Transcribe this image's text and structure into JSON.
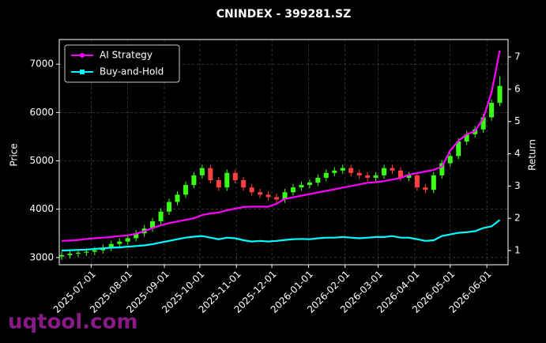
{
  "chart_data": {
    "type": "candlestick",
    "title": "CNINDEX - 399281.SZ",
    "ylabel": "Price",
    "y2label": "Return",
    "watermark": "uqtool.com",
    "legend": "upper left",
    "grid": true,
    "up_color": "#39ff14",
    "down_color": "#ff4040",
    "x": [
      "2025-06-06",
      "2025-06-13",
      "2025-06-20",
      "2025-06-27",
      "2025-07-04",
      "2025-07-11",
      "2025-07-18",
      "2025-07-25",
      "2025-08-01",
      "2025-08-08",
      "2025-08-15",
      "2025-08-22",
      "2025-08-29",
      "2025-09-05",
      "2025-09-12",
      "2025-09-19",
      "2025-09-26",
      "2025-10-03",
      "2025-10-10",
      "2025-10-17",
      "2025-10-24",
      "2025-10-31",
      "2025-11-07",
      "2025-11-14",
      "2025-11-21",
      "2025-11-28",
      "2025-12-05",
      "2025-12-12",
      "2025-12-19",
      "2025-12-26",
      "2026-01-02",
      "2026-01-09",
      "2026-01-16",
      "2026-01-23",
      "2026-01-30",
      "2026-02-06",
      "2026-02-13",
      "2026-02-20",
      "2026-02-27",
      "2026-03-06",
      "2026-03-13",
      "2026-03-20",
      "2026-03-27",
      "2026-04-03",
      "2026-04-10",
      "2026-04-17",
      "2026-04-24",
      "2026-05-01",
      "2026-05-08",
      "2026-05-15",
      "2026-05-22",
      "2026-05-29",
      "2026-06-05",
      "2026-06-12"
    ],
    "ohlc": [
      [
        3020,
        3120,
        2950,
        3050
      ],
      [
        3050,
        3150,
        2980,
        3080
      ],
      [
        3080,
        3170,
        3010,
        3100
      ],
      [
        3100,
        3190,
        3030,
        3120
      ],
      [
        3120,
        3220,
        3050,
        3150
      ],
      [
        3150,
        3270,
        3080,
        3200
      ],
      [
        3200,
        3350,
        3130,
        3280
      ],
      [
        3280,
        3400,
        3210,
        3330
      ],
      [
        3330,
        3470,
        3260,
        3400
      ],
      [
        3400,
        3570,
        3330,
        3500
      ],
      [
        3500,
        3670,
        3430,
        3600
      ],
      [
        3600,
        3820,
        3530,
        3750
      ],
      [
        3750,
        4020,
        3680,
        3950
      ],
      [
        3950,
        4220,
        3880,
        4150
      ],
      [
        4150,
        4370,
        4080,
        4300
      ],
      [
        4300,
        4570,
        4230,
        4500
      ],
      [
        4500,
        4770,
        4430,
        4700
      ],
      [
        4700,
        4920,
        4630,
        4850
      ],
      [
        4850,
        4920,
        4530,
        4600
      ],
      [
        4600,
        4670,
        4380,
        4450
      ],
      [
        4450,
        4820,
        4380,
        4750
      ],
      [
        4750,
        4820,
        4530,
        4600
      ],
      [
        4600,
        4670,
        4380,
        4450
      ],
      [
        4450,
        4520,
        4280,
        4350
      ],
      [
        4350,
        4420,
        4230,
        4300
      ],
      [
        4300,
        4370,
        4180,
        4250
      ],
      [
        4250,
        4320,
        4130,
        4200
      ],
      [
        4200,
        4420,
        4130,
        4350
      ],
      [
        4350,
        4520,
        4280,
        4450
      ],
      [
        4450,
        4570,
        4380,
        4500
      ],
      [
        4500,
        4620,
        4430,
        4550
      ],
      [
        4550,
        4720,
        4480,
        4650
      ],
      [
        4650,
        4820,
        4580,
        4750
      ],
      [
        4750,
        4870,
        4680,
        4800
      ],
      [
        4800,
        4920,
        4730,
        4850
      ],
      [
        4850,
        4920,
        4680,
        4750
      ],
      [
        4750,
        4820,
        4630,
        4700
      ],
      [
        4700,
        4770,
        4580,
        4650
      ],
      [
        4650,
        4770,
        4580,
        4700
      ],
      [
        4700,
        4920,
        4630,
        4850
      ],
      [
        4850,
        4920,
        4730,
        4800
      ],
      [
        4800,
        4870,
        4580,
        4650
      ],
      [
        4650,
        4770,
        4580,
        4700
      ],
      [
        4700,
        4770,
        4380,
        4450
      ],
      [
        4450,
        4520,
        4330,
        4400
      ],
      [
        4400,
        4770,
        4330,
        4700
      ],
      [
        4700,
        5020,
        4630,
        4950
      ],
      [
        4950,
        5170,
        4880,
        5100
      ],
      [
        5100,
        5470,
        5030,
        5400
      ],
      [
        5400,
        5620,
        5330,
        5550
      ],
      [
        5550,
        5720,
        5480,
        5650
      ],
      [
        5650,
        5970,
        5580,
        5900
      ],
      [
        5900,
        6270,
        5830,
        6200
      ],
      [
        6200,
        6750,
        6130,
        6550
      ]
    ],
    "series": [
      {
        "name": "AI Strategy",
        "color": "#ff00ff",
        "axis": "y2",
        "marker": "circle",
        "values": [
          1.3,
          1.31,
          1.33,
          1.36,
          1.38,
          1.4,
          1.42,
          1.45,
          1.47,
          1.52,
          1.6,
          1.7,
          1.78,
          1.85,
          1.9,
          1.95,
          2.0,
          2.1,
          2.15,
          2.18,
          2.25,
          2.3,
          2.35,
          2.36,
          2.36,
          2.36,
          2.45,
          2.6,
          2.65,
          2.7,
          2.75,
          2.8,
          2.85,
          2.9,
          2.95,
          3.0,
          3.05,
          3.1,
          3.12,
          3.15,
          3.2,
          3.25,
          3.35,
          3.4,
          3.45,
          3.5,
          3.6,
          4.1,
          4.4,
          4.6,
          4.7,
          5.1,
          5.9,
          7.2
        ]
      },
      {
        "name": "Buy-and-Hold",
        "color": "#00ffff",
        "axis": "y2",
        "marker": "square",
        "values": [
          1.0,
          1.01,
          1.02,
          1.03,
          1.05,
          1.07,
          1.09,
          1.1,
          1.12,
          1.14,
          1.16,
          1.2,
          1.25,
          1.3,
          1.35,
          1.4,
          1.43,
          1.45,
          1.4,
          1.35,
          1.4,
          1.38,
          1.32,
          1.28,
          1.3,
          1.28,
          1.3,
          1.33,
          1.35,
          1.36,
          1.35,
          1.38,
          1.4,
          1.4,
          1.42,
          1.4,
          1.38,
          1.4,
          1.42,
          1.42,
          1.45,
          1.4,
          1.4,
          1.35,
          1.3,
          1.32,
          1.45,
          1.5,
          1.55,
          1.57,
          1.6,
          1.7,
          1.75,
          1.95
        ]
      }
    ],
    "xlim": [
      "2025-06-04",
      "2026-06-19"
    ],
    "xticks": [
      "2025-07-01",
      "2025-08-01",
      "2025-09-01",
      "2025-10-01",
      "2025-11-01",
      "2025-12-01",
      "2026-01-01",
      "2026-02-01",
      "2026-03-01",
      "2026-04-01",
      "2026-05-01",
      "2026-06-01"
    ],
    "ylim": [
      2850,
      7510
    ],
    "yticks": [
      3000,
      4000,
      5000,
      6000,
      7000
    ],
    "y2lim": [
      0.56,
      7.54
    ],
    "y2ticks": [
      1,
      2,
      3,
      4,
      5,
      6,
      7
    ]
  }
}
